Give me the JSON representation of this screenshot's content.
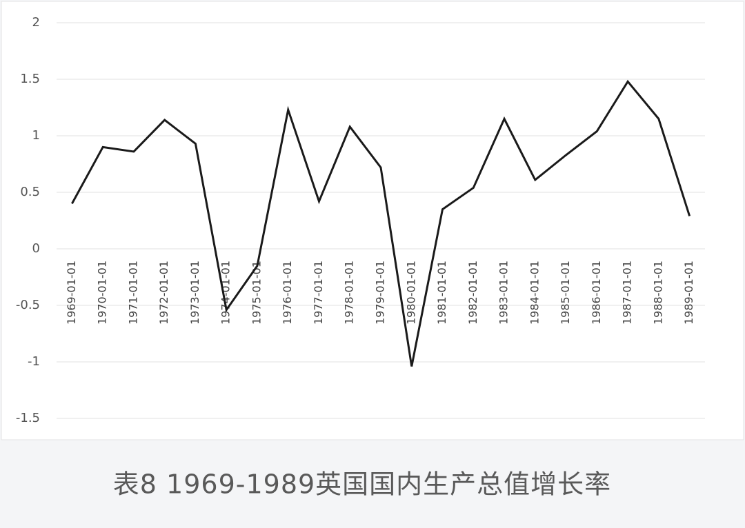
{
  "chart_data": {
    "type": "line",
    "title": "表8  1969-1989英国国内生产总值增长率",
    "categories": [
      "1969-01-01",
      "1970-01-01",
      "1971-01-01",
      "1972-01-01",
      "1973-01-01",
      "1974-01-01",
      "1975-01-01",
      "1976-01-01",
      "1977-01-01",
      "1978-01-01",
      "1979-01-01",
      "1980-01-01",
      "1981-01-01",
      "1982-01-01",
      "1983-01-01",
      "1984-01-01",
      "1985-01-01",
      "1986-01-01",
      "1987-01-01",
      "1988-01-01",
      "1989-01-01"
    ],
    "values": [
      0.4,
      0.9,
      0.86,
      1.14,
      0.93,
      -0.54,
      -0.15,
      1.23,
      0.42,
      1.08,
      0.72,
      -1.04,
      0.35,
      0.54,
      1.15,
      0.61,
      0.83,
      1.04,
      1.48,
      1.15,
      0.29
    ],
    "color": "#1a1a1a",
    "ylim": [
      -1.5,
      2
    ],
    "yticks": [
      -1.5,
      -1,
      -0.5,
      0,
      0.5,
      1,
      1.5,
      2
    ],
    "grid": true
  }
}
